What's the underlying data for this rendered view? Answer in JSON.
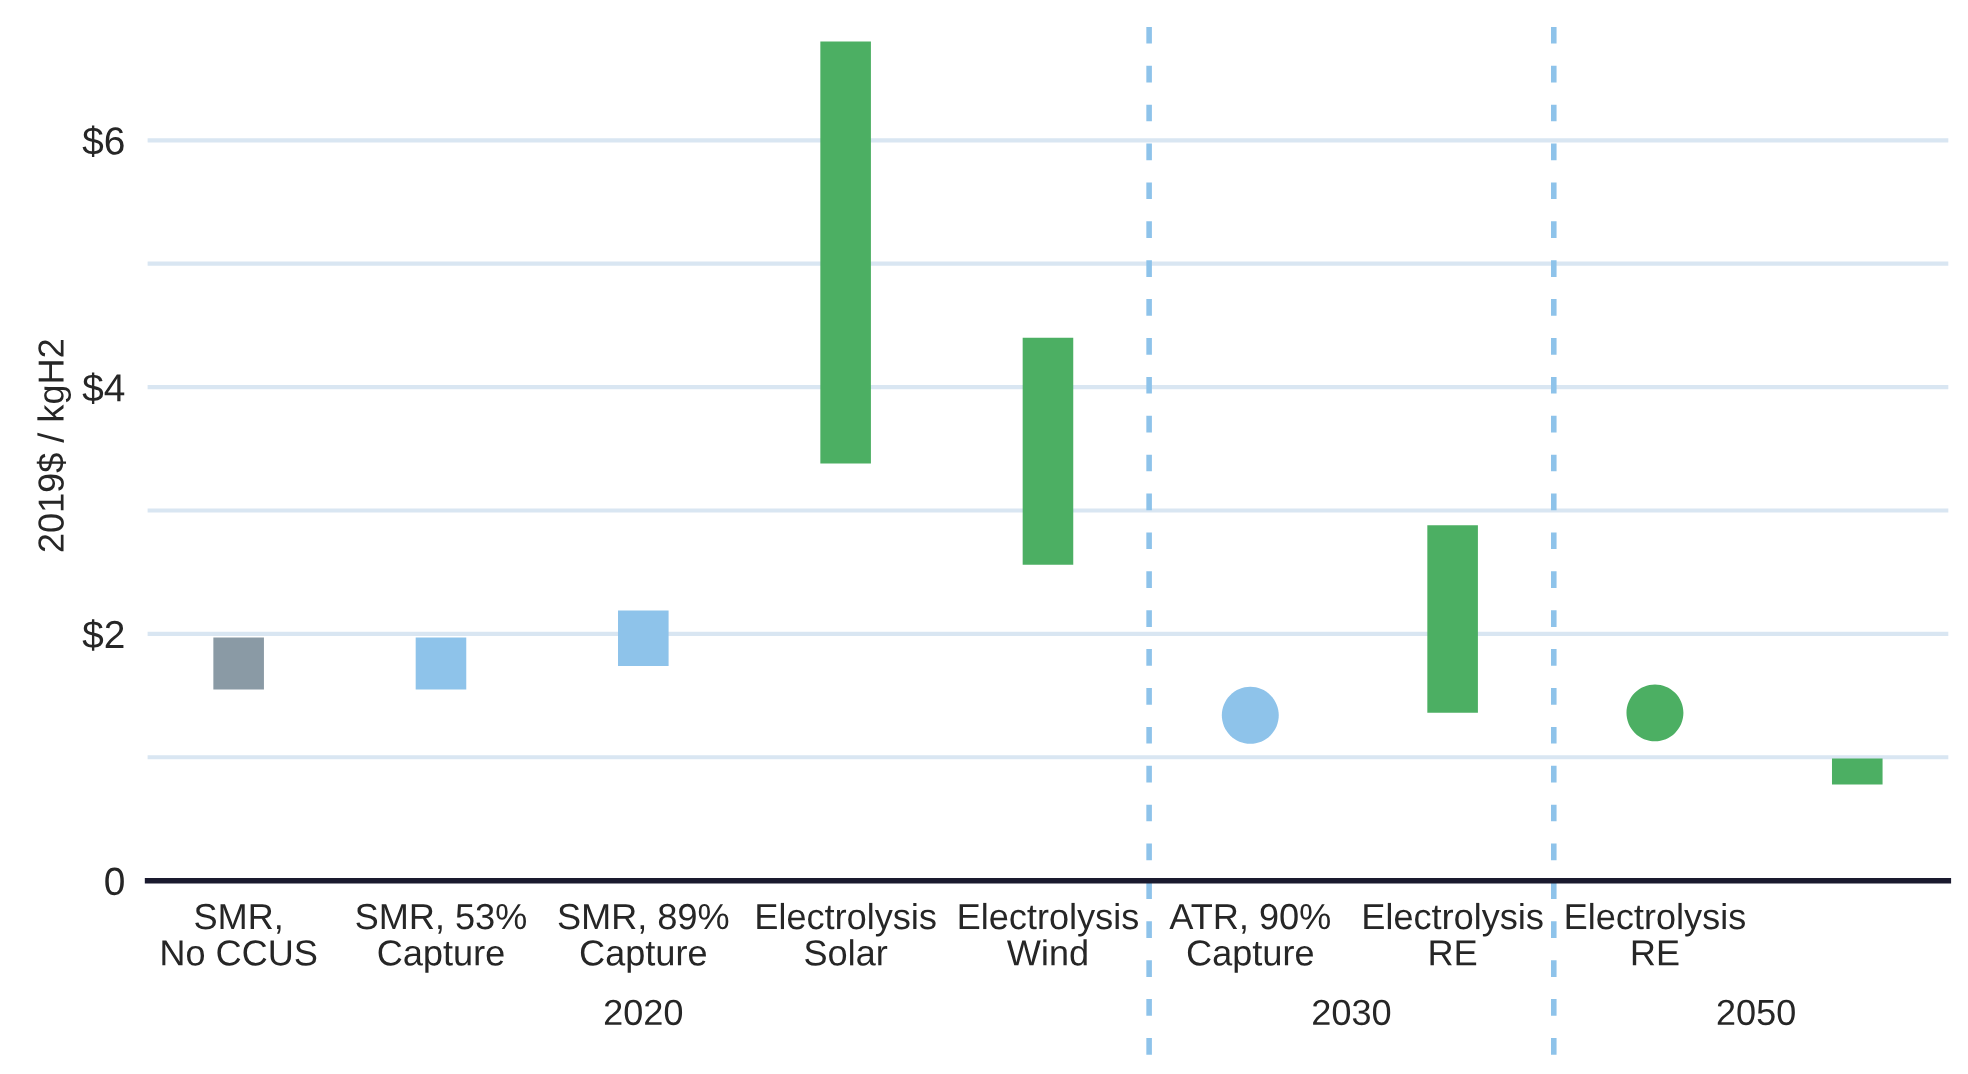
{
  "chart_data": {
    "type": "bar",
    "ylabel": "2019$ / kgH2",
    "categories": [
      "SMR,\nNo CCUS",
      "SMR, 53%\nCapture",
      "SMR, 89%\nCapture",
      "Electrolysis\nSolar",
      "Electrolysis\nWind",
      "ATR, 90%\nCapture",
      "Electrolysis\nRE",
      "Electrolysis\nRE",
      null
    ],
    "series": [
      {
        "values": [
          0.42,
          0.42,
          0.45,
          3.42,
          1.84,
          null,
          1.52,
          null,
          0.21
        ],
        "base": [
          1.55,
          1.55,
          1.74,
          3.38,
          2.56,
          null,
          1.36,
          null,
          0.78
        ],
        "colors": [
          "#8a9aa5",
          "#8ec3ea",
          "#8ec3ea",
          "#4caf63",
          "#4caf63",
          null,
          "#4caf63",
          null,
          "#4caf63"
        ]
      },
      {
        "type": "scatter",
        "marker": "circle",
        "values": [
          null,
          null,
          null,
          null,
          null,
          1.34,
          null,
          1.36,
          null
        ],
        "colors": [
          null,
          null,
          null,
          null,
          null,
          "#8ec3ea",
          null,
          "#4caf63",
          null
        ]
      }
    ],
    "ylim": [
      0,
      7.05
    ],
    "yticks": [
      0,
      {
        "value": 1,
        "label": null
      },
      {
        "value": 2,
        "label": "$2"
      },
      {
        "value": 3,
        "label": null
      },
      {
        "value": 4,
        "label": "$4"
      },
      {
        "value": 5,
        "label": null
      },
      {
        "value": 6,
        "label": "$6"
      }
    ],
    "grid": "y",
    "annotations": [
      "2020",
      "2030",
      "2050"
    ]
  }
}
